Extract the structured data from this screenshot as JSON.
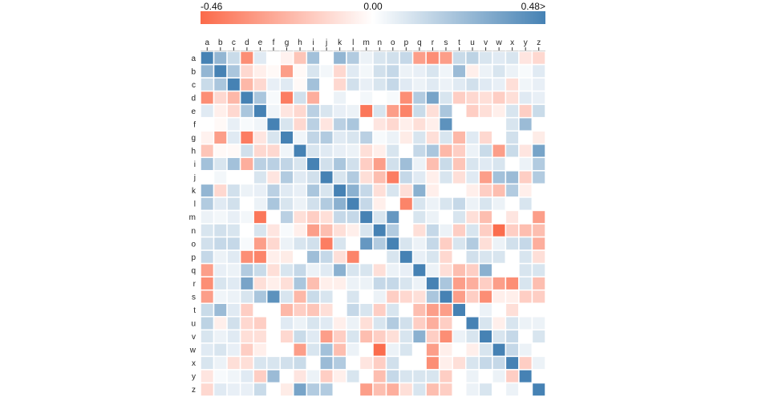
{
  "chart_data": {
    "type": "heatmap",
    "title": "",
    "xlabel": "",
    "ylabel": "",
    "categories": [
      "a",
      "b",
      "c",
      "d",
      "e",
      "f",
      "g",
      "h",
      "i",
      "j",
      "k",
      "l",
      "m",
      "n",
      "o",
      "p",
      "q",
      "r",
      "s",
      "t",
      "u",
      "v",
      "w",
      "x",
      "y",
      "z"
    ],
    "colorscale": {
      "min": -0.46,
      "mid": 0.0,
      "max": 0.48,
      "min_label": "-0.46",
      "mid_label": "0.00",
      "max_label": "0.48>",
      "negative_color": "#fb6a4a",
      "neutral_color": "#ffffff",
      "positive_color": "#4682b4"
    },
    "values": [
      [
        0.48,
        0.28,
        0.14,
        -0.35,
        0.08,
        0.0,
        -0.04,
        -0.18,
        0.24,
        0.0,
        0.28,
        0.2,
        0.05,
        0.1,
        0.12,
        0.15,
        -0.3,
        -0.35,
        -0.3,
        0.14,
        0.17,
        0.1,
        0.08,
        0.1,
        -0.08,
        -0.12
      ],
      [
        0.28,
        0.48,
        0.22,
        -0.12,
        -0.05,
        -0.02,
        -0.3,
        -0.02,
        0.1,
        0.03,
        -0.12,
        0.08,
        0.03,
        0.12,
        0.15,
        0.05,
        0.06,
        0.1,
        0.04,
        0.26,
        -0.05,
        0.05,
        0.1,
        0.05,
        0.02,
        0.08
      ],
      [
        0.14,
        0.22,
        0.48,
        -0.22,
        -0.12,
        0.06,
        0.08,
        -0.02,
        0.24,
        0.0,
        -0.12,
        0.12,
        0.06,
        0.1,
        0.15,
        0.08,
        0.05,
        0.08,
        0.05,
        0.08,
        0.12,
        0.08,
        0.06,
        -0.1,
        0.04,
        0.06
      ],
      [
        -0.35,
        -0.12,
        -0.22,
        0.48,
        0.22,
        0.02,
        -0.4,
        0.12,
        -0.25,
        0.0,
        0.05,
        0.0,
        0.03,
        0.0,
        0.02,
        -0.35,
        0.2,
        0.35,
        0.1,
        -0.15,
        -0.12,
        -0.1,
        -0.15,
        -0.1,
        0.08,
        0.06
      ],
      [
        0.08,
        -0.05,
        -0.12,
        0.22,
        0.48,
        0.04,
        -0.08,
        -0.12,
        0.18,
        0.1,
        0.06,
        0.05,
        -0.42,
        0.1,
        -0.3,
        -0.38,
        0.14,
        -0.1,
        0.22,
        0.0,
        -0.15,
        -0.1,
        -0.05,
        0.1,
        -0.15,
        0.14
      ],
      [
        0.0,
        -0.02,
        0.06,
        0.02,
        0.04,
        0.48,
        0.1,
        -0.12,
        0.18,
        -0.08,
        0.18,
        0.22,
        0.0,
        -0.08,
        -0.12,
        -0.05,
        -0.1,
        -0.05,
        0.42,
        0.0,
        0.0,
        0.0,
        0.0,
        0.1,
        0.26,
        0.0
      ],
      [
        -0.04,
        -0.3,
        0.08,
        -0.4,
        -0.08,
        0.1,
        0.48,
        0.04,
        0.16,
        0.2,
        0.08,
        0.1,
        0.18,
        0.02,
        0.05,
        -0.06,
        0.1,
        -0.1,
        0.1,
        -0.22,
        0.08,
        -0.12,
        0.0,
        0.12,
        0.0,
        -0.06
      ],
      [
        -0.18,
        -0.02,
        -0.02,
        0.12,
        -0.12,
        -0.12,
        0.04,
        0.48,
        0.1,
        0.08,
        0.06,
        0.05,
        -0.1,
        -0.05,
        0.1,
        0.0,
        0.15,
        0.22,
        -0.22,
        -0.15,
        0.05,
        0.14,
        -0.3,
        0.14,
        -0.08,
        0.35
      ],
      [
        0.24,
        0.1,
        0.24,
        -0.25,
        0.18,
        0.18,
        0.16,
        0.1,
        0.48,
        0.12,
        0.22,
        0.12,
        -0.15,
        -0.3,
        0.12,
        0.25,
        0.05,
        -0.2,
        0.14,
        -0.18,
        0.1,
        0.08,
        0.1,
        0.0,
        0.05,
        0.2
      ],
      [
        0.0,
        0.03,
        0.0,
        0.0,
        0.1,
        -0.08,
        0.2,
        0.08,
        0.12,
        0.48,
        0.1,
        0.2,
        -0.1,
        -0.2,
        -0.4,
        0.15,
        0.08,
        -0.05,
        0.1,
        -0.1,
        0.08,
        -0.3,
        0.24,
        0.26,
        -0.15,
        0.2
      ],
      [
        0.28,
        -0.12,
        0.12,
        0.05,
        0.06,
        0.18,
        0.08,
        0.06,
        0.22,
        0.1,
        0.48,
        0.3,
        0.15,
        -0.1,
        0.1,
        -0.1,
        0.3,
        -0.05,
        0.0,
        0.0,
        -0.05,
        -0.15,
        -0.2,
        0.2,
        -0.05,
        0.0
      ],
      [
        0.2,
        0.08,
        0.12,
        0.0,
        0.05,
        0.22,
        0.1,
        0.05,
        0.12,
        0.2,
        0.3,
        0.48,
        0.15,
        -0.05,
        0.0,
        -0.38,
        0.1,
        0.05,
        0.1,
        0.15,
        0.05,
        0.1,
        0.05,
        0.0,
        0.1,
        0.0
      ],
      [
        0.05,
        0.03,
        0.06,
        0.03,
        -0.42,
        0.0,
        0.18,
        -0.1,
        -0.15,
        -0.1,
        0.15,
        0.15,
        0.48,
        0.1,
        0.4,
        0.0,
        0.1,
        0.05,
        0.0,
        0.1,
        -0.1,
        -0.2,
        0.0,
        -0.08,
        0.0,
        -0.3
      ],
      [
        0.1,
        0.12,
        0.1,
        0.0,
        0.1,
        -0.08,
        0.02,
        -0.05,
        -0.3,
        -0.2,
        -0.1,
        -0.05,
        0.1,
        0.48,
        0.2,
        0.0,
        -0.1,
        0.15,
        0.05,
        -0.15,
        0.1,
        -0.15,
        -0.45,
        -0.15,
        -0.2,
        -0.2
      ],
      [
        0.12,
        0.15,
        0.15,
        0.02,
        -0.3,
        -0.12,
        0.05,
        0.1,
        0.12,
        -0.4,
        0.1,
        0.0,
        0.4,
        0.2,
        0.48,
        0.1,
        0.05,
        0.15,
        -0.15,
        0.1,
        0.2,
        -0.1,
        0.05,
        0.12,
        0.15,
        -0.25
      ],
      [
        0.15,
        0.05,
        0.08,
        -0.35,
        -0.38,
        -0.05,
        -0.06,
        0.0,
        0.25,
        0.15,
        -0.1,
        -0.38,
        0.0,
        0.0,
        0.1,
        0.48,
        0.06,
        0.1,
        -0.12,
        0.0,
        0.12,
        0.1,
        0.1,
        0.0,
        0.1,
        -0.1
      ],
      [
        -0.3,
        0.06,
        0.05,
        0.2,
        0.14,
        -0.1,
        0.1,
        0.15,
        0.05,
        0.08,
        0.3,
        0.1,
        0.1,
        -0.1,
        0.05,
        0.06,
        0.48,
        0.05,
        -0.1,
        -0.2,
        -0.15,
        0.3,
        0.0,
        0.0,
        0.1,
        0.1
      ],
      [
        -0.35,
        0.1,
        0.08,
        0.35,
        -0.1,
        -0.05,
        -0.1,
        0.22,
        -0.2,
        -0.05,
        -0.05,
        0.05,
        0.05,
        0.15,
        0.15,
        0.1,
        0.05,
        0.48,
        0.22,
        -0.3,
        -0.25,
        -0.15,
        -0.3,
        -0.35,
        0.1,
        -0.2
      ],
      [
        -0.3,
        0.04,
        0.05,
        0.1,
        0.22,
        0.42,
        0.1,
        -0.22,
        0.14,
        0.1,
        0.0,
        0.1,
        0.0,
        0.05,
        -0.15,
        -0.12,
        -0.1,
        0.22,
        0.48,
        -0.3,
        -0.15,
        -0.35,
        -0.05,
        -0.05,
        -0.15,
        -0.15
      ],
      [
        0.14,
        0.26,
        0.08,
        -0.15,
        0.0,
        0.0,
        -0.22,
        -0.15,
        -0.18,
        -0.1,
        0.0,
        0.15,
        0.1,
        -0.15,
        0.1,
        0.0,
        -0.2,
        -0.3,
        -0.3,
        0.48,
        0.0,
        0.05,
        0.0,
        -0.1,
        0.0,
        0.0
      ],
      [
        0.17,
        -0.05,
        0.12,
        -0.12,
        -0.15,
        0.0,
        0.08,
        0.05,
        0.1,
        0.08,
        -0.05,
        0.05,
        -0.1,
        0.1,
        0.2,
        0.12,
        -0.15,
        -0.25,
        -0.15,
        0.0,
        0.48,
        0.1,
        -0.05,
        0.1,
        0.05,
        0.05
      ],
      [
        0.1,
        0.05,
        0.08,
        -0.1,
        -0.1,
        0.0,
        -0.12,
        0.14,
        0.08,
        -0.3,
        -0.15,
        0.1,
        -0.2,
        -0.15,
        -0.1,
        0.1,
        0.3,
        -0.15,
        -0.35,
        0.05,
        0.1,
        0.48,
        0.1,
        0.15,
        0.0,
        0.1
      ],
      [
        0.08,
        0.1,
        0.06,
        -0.15,
        -0.05,
        0.0,
        0.0,
        -0.3,
        0.1,
        0.24,
        -0.2,
        0.05,
        0.0,
        -0.45,
        0.05,
        0.1,
        0.0,
        -0.3,
        -0.05,
        0.0,
        -0.05,
        0.1,
        0.48,
        0.15,
        0.05,
        0.0
      ],
      [
        0.1,
        0.05,
        -0.1,
        -0.1,
        0.1,
        0.1,
        0.12,
        0.14,
        0.0,
        0.26,
        0.2,
        0.0,
        -0.08,
        -0.15,
        0.12,
        0.0,
        0.0,
        -0.35,
        -0.05,
        -0.1,
        0.1,
        0.15,
        0.15,
        0.48,
        -0.15,
        0.05
      ],
      [
        -0.08,
        0.02,
        0.04,
        0.08,
        -0.15,
        0.26,
        0.0,
        -0.08,
        0.05,
        -0.15,
        -0.05,
        0.1,
        0.0,
        -0.2,
        0.15,
        0.1,
        0.1,
        0.1,
        -0.15,
        0.0,
        0.05,
        0.0,
        0.05,
        -0.15,
        0.48,
        0.0
      ],
      [
        -0.12,
        0.08,
        0.06,
        0.06,
        0.14,
        0.0,
        -0.06,
        0.35,
        0.2,
        0.2,
        0.0,
        0.0,
        -0.3,
        -0.2,
        -0.25,
        -0.1,
        0.1,
        -0.2,
        -0.15,
        0.0,
        0.05,
        0.1,
        0.0,
        0.05,
        0.0,
        0.48
      ]
    ]
  }
}
